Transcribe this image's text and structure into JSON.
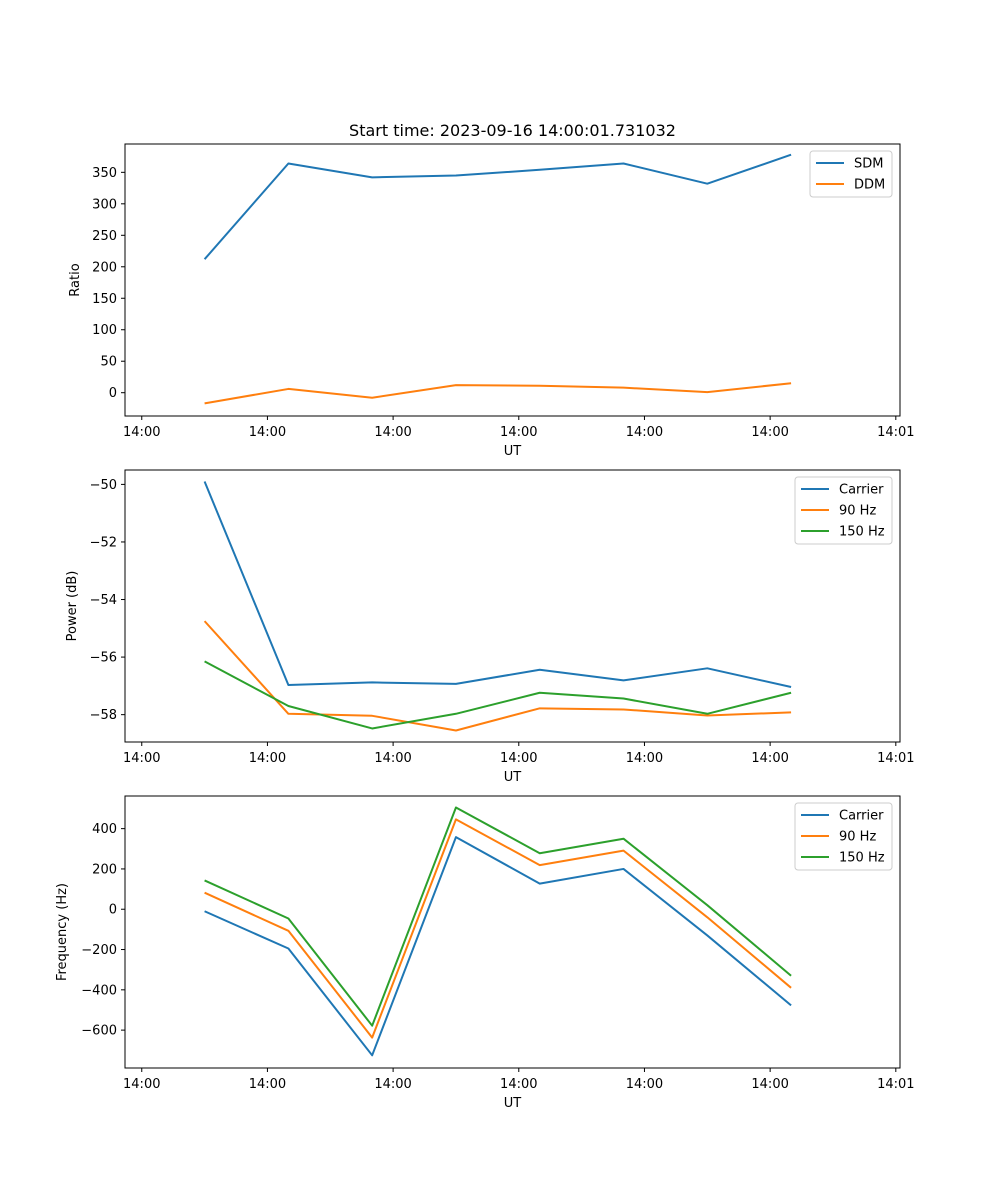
{
  "chart_data": [
    {
      "type": "line",
      "title": "Start time: 2023-09-16 14:00:01.731032",
      "xlabel": "UT",
      "ylabel": "Ratio",
      "xlim": [
        0,
        18.5
      ],
      "ylim": [
        -37,
        395
      ],
      "x_ticks": [
        {
          "value": 0.4,
          "label": "14:00"
        },
        {
          "value": 3.4,
          "label": "14:00"
        },
        {
          "value": 6.4,
          "label": "14:00"
        },
        {
          "value": 9.4,
          "label": "14:00"
        },
        {
          "value": 12.4,
          "label": "14:00"
        },
        {
          "value": 15.4,
          "label": "14:00"
        },
        {
          "value": 18.4,
          "label": "14:01"
        }
      ],
      "y_ticks": [
        0,
        50,
        100,
        150,
        200,
        250,
        300,
        350
      ],
      "x": [
        1.9,
        3.9,
        5.9,
        7.9,
        9.9,
        11.9,
        13.9,
        15.9
      ],
      "series": [
        {
          "name": "SDM",
          "color": "#1f77b4",
          "values": [
            212,
            364,
            342,
            345,
            354,
            364,
            332,
            378
          ]
        },
        {
          "name": "DDM",
          "color": "#ff7f0e",
          "values": [
            -17,
            6,
            -8,
            12,
            11,
            8,
            1,
            15
          ]
        }
      ],
      "legend": "top-right"
    },
    {
      "type": "line",
      "title": "",
      "xlabel": "UT",
      "ylabel": "Power (dB)",
      "xlim": [
        0,
        18.5
      ],
      "ylim": [
        -58.95,
        -49.5
      ],
      "x_ticks": [
        {
          "value": 0.4,
          "label": "14:00"
        },
        {
          "value": 3.4,
          "label": "14:00"
        },
        {
          "value": 6.4,
          "label": "14:00"
        },
        {
          "value": 9.4,
          "label": "14:00"
        },
        {
          "value": 12.4,
          "label": "14:00"
        },
        {
          "value": 15.4,
          "label": "14:00"
        },
        {
          "value": 18.4,
          "label": "14:01"
        }
      ],
      "y_ticks": [
        -58,
        -56,
        -54,
        -52,
        -50
      ],
      "x": [
        1.9,
        3.9,
        5.9,
        7.9,
        9.9,
        11.9,
        13.9,
        15.9
      ],
      "series": [
        {
          "name": "Carrier",
          "color": "#1f77b4",
          "values": [
            -49.9,
            -56.97,
            -56.88,
            -56.93,
            -56.44,
            -56.81,
            -56.39,
            -57.04
          ]
        },
        {
          "name": "90 Hz",
          "color": "#ff7f0e",
          "values": [
            -54.75,
            -57.97,
            -58.04,
            -58.55,
            -57.78,
            -57.82,
            -58.03,
            -57.92
          ]
        },
        {
          "name": "150 Hz",
          "color": "#2ca02c",
          "values": [
            -56.15,
            -57.7,
            -58.48,
            -57.97,
            -57.24,
            -57.44,
            -57.97,
            -57.24
          ]
        }
      ],
      "legend": "top-right"
    },
    {
      "type": "line",
      "title": "",
      "xlabel": "UT",
      "ylabel": "Frequency (Hz)",
      "xlim": [
        0,
        18.5
      ],
      "ylim": [
        -788,
        562
      ],
      "x_ticks": [
        {
          "value": 0.4,
          "label": "14:00"
        },
        {
          "value": 3.4,
          "label": "14:00"
        },
        {
          "value": 6.4,
          "label": "14:00"
        },
        {
          "value": 9.4,
          "label": "14:00"
        },
        {
          "value": 12.4,
          "label": "14:00"
        },
        {
          "value": 15.4,
          "label": "14:00"
        },
        {
          "value": 18.4,
          "label": "14:01"
        }
      ],
      "y_ticks": [
        -600,
        -400,
        -200,
        0,
        200,
        400
      ],
      "x": [
        1.9,
        3.9,
        5.9,
        7.9,
        9.9,
        11.9,
        13.9,
        15.9
      ],
      "series": [
        {
          "name": "Carrier",
          "color": "#1f77b4",
          "values": [
            -10,
            -195,
            -725,
            358,
            127,
            200,
            -130,
            -477
          ]
        },
        {
          "name": "90 Hz",
          "color": "#ff7f0e",
          "values": [
            82,
            -107,
            -637,
            446,
            219,
            291,
            -40,
            -390
          ]
        },
        {
          "name": "150 Hz",
          "color": "#2ca02c",
          "values": [
            143,
            -46,
            -578,
            505,
            278,
            350,
            20,
            -330
          ]
        }
      ],
      "legend": "top-right"
    }
  ]
}
